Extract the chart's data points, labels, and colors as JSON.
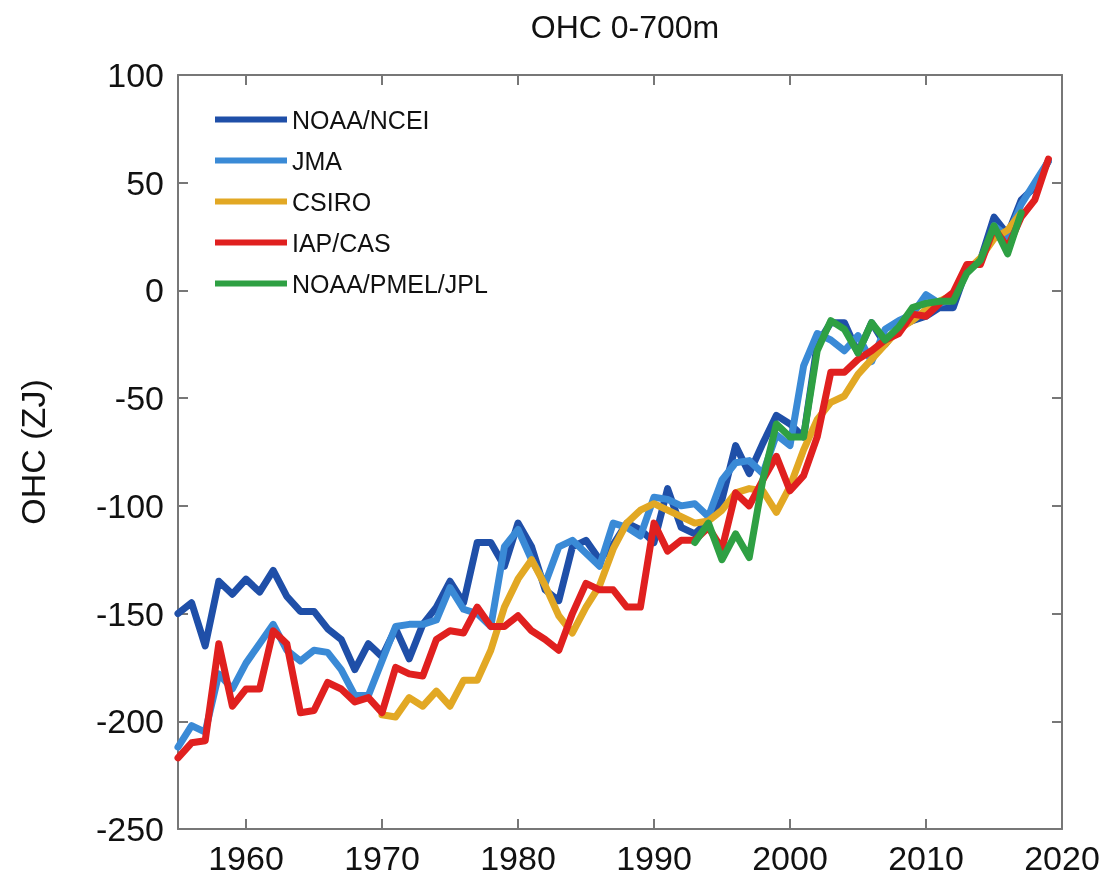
{
  "chart_data": {
    "type": "line",
    "title": "OHC 0-700m",
    "ylabel": "OHC (ZJ)",
    "xlim": [
      1955,
      2020
    ],
    "xticks": [
      1960,
      1970,
      1980,
      1990,
      2000,
      2010,
      2020
    ],
    "ylim": [
      -250,
      100
    ],
    "yticks": [
      -250,
      -200,
      -150,
      -100,
      -50,
      0,
      50,
      100
    ],
    "grid": false,
    "legend": "top left",
    "marker": "none",
    "line_style": "solid",
    "series": [
      {
        "name": "NOAA/NCEI",
        "color": "#1f4fa8",
        "x": [
          1955,
          1956,
          1957,
          1958,
          1959,
          1960,
          1961,
          1962,
          1963,
          1964,
          1965,
          1966,
          1967,
          1968,
          1969,
          1970,
          1971,
          1972,
          1973,
          1974,
          1975,
          1976,
          1977,
          1978,
          1979,
          1980,
          1981,
          1982,
          1983,
          1984,
          1985,
          1986,
          1987,
          1988,
          1989,
          1990,
          1991,
          1992,
          1993,
          1994,
          1995,
          1996,
          1997,
          1998,
          1999,
          2000,
          2001,
          2002,
          2003,
          2004,
          2005,
          2006,
          2007,
          2008,
          2009,
          2010,
          2011,
          2012,
          2013,
          2014,
          2015,
          2016,
          2017,
          2018,
          2019
        ],
        "values": [
          -150,
          -145,
          -165,
          -135,
          -141,
          -134,
          -140,
          -130,
          -142,
          -149,
          -149,
          -157,
          -162,
          -176,
          -164,
          -170,
          -157,
          -171,
          -155,
          -147,
          -135,
          -145,
          -117,
          -117,
          -128,
          -108,
          -119,
          -139,
          -144,
          -119,
          -116,
          -125,
          -118,
          -108,
          -111,
          -117,
          -92,
          -110,
          -113,
          -107,
          -97,
          -72,
          -85,
          -71,
          -58,
          -62,
          -68,
          -25,
          -15,
          -15,
          -29,
          -15,
          -25,
          -17,
          -14,
          -12,
          -8,
          -8,
          10,
          14,
          34,
          26,
          42,
          48,
          60
        ]
      },
      {
        "name": "JMA",
        "color": "#3a8ad6",
        "x": [
          1955,
          1956,
          1957,
          1958,
          1959,
          1960,
          1961,
          1962,
          1963,
          1964,
          1965,
          1966,
          1967,
          1968,
          1969,
          1970,
          1971,
          1972,
          1973,
          1974,
          1975,
          1976,
          1977,
          1978,
          1979,
          1980,
          1981,
          1982,
          1983,
          1984,
          1985,
          1986,
          1987,
          1988,
          1989,
          1990,
          1991,
          1992,
          1993,
          1994,
          1995,
          1996,
          1997,
          1998,
          1999,
          2000,
          2001,
          2002,
          2003,
          2004,
          2005,
          2006,
          2007,
          2008,
          2009,
          2010,
          2011,
          2012,
          2013,
          2014,
          2015,
          2016,
          2017,
          2018,
          2019
        ],
        "values": [
          -212,
          -202,
          -205,
          -178,
          -185,
          -173,
          -164,
          -155,
          -167,
          -172,
          -167,
          -168,
          -176,
          -188,
          -188,
          -172,
          -156,
          -155,
          -155,
          -153,
          -138,
          -148,
          -150,
          -156,
          -119,
          -111,
          -125,
          -136,
          -119,
          -116,
          -122,
          -128,
          -108,
          -110,
          -114,
          -96,
          -97,
          -100,
          -99,
          -105,
          -88,
          -80,
          -79,
          -85,
          -67,
          -72,
          -35,
          -20,
          -23,
          -28,
          -21,
          -33,
          -18,
          -14,
          -11,
          -2,
          -6,
          -4,
          10,
          null,
          30,
          25,
          40,
          50,
          60
        ]
      },
      {
        "name": "CSIRO",
        "color": "#e2a824",
        "x": [
          1970,
          1971,
          1972,
          1973,
          1974,
          1975,
          1976,
          1977,
          1978,
          1979,
          1980,
          1981,
          1982,
          1983,
          1984,
          1985,
          1986,
          1987,
          1988,
          1989,
          1990,
          1991,
          1992,
          1993,
          1994,
          1995,
          1996,
          1997,
          1998,
          1999,
          2000,
          2001,
          2002,
          2003,
          2004,
          2005,
          2006,
          2007,
          2008,
          2009,
          2010,
          2011,
          2012,
          2013,
          2014,
          2015,
          2016,
          2017
        ],
        "values": [
          -197,
          -198,
          -189,
          -193,
          -186,
          -193,
          -181,
          -181,
          -167,
          -147,
          -134,
          -125,
          -137,
          -151,
          -159,
          -147,
          -137,
          -120,
          -108,
          -102,
          -99,
          -102,
          -105,
          -108,
          -107,
          -102,
          -94,
          -92,
          -93,
          -103,
          -91,
          -74,
          -60,
          -52,
          -49,
          -39,
          -32,
          -25,
          -18,
          -14,
          -9,
          -5,
          -2,
          9,
          15,
          24,
          28,
          36
        ]
      },
      {
        "name": "IAP/CAS",
        "color": "#e0201f",
        "x": [
          1955,
          1956,
          1957,
          1958,
          1959,
          1960,
          1961,
          1962,
          1963,
          1964,
          1965,
          1966,
          1967,
          1968,
          1969,
          1970,
          1971,
          1972,
          1973,
          1974,
          1975,
          1976,
          1977,
          1978,
          1979,
          1980,
          1981,
          1982,
          1983,
          1984,
          1985,
          1986,
          1987,
          1988,
          1989,
          1990,
          1991,
          1992,
          1993,
          1994,
          1995,
          1996,
          1997,
          1998,
          1999,
          2000,
          2001,
          2002,
          2003,
          2004,
          2005,
          2006,
          2007,
          2008,
          2009,
          2010,
          2011,
          2012,
          2013,
          2014,
          2015,
          2016,
          2017,
          2018,
          2019
        ],
        "values": [
          -217,
          -210,
          -209,
          -164,
          -193,
          -185,
          -185,
          -158,
          -164,
          -196,
          -195,
          -182,
          -185,
          -191,
          -189,
          -196,
          -175,
          -178,
          -179,
          -162,
          -158,
          -159,
          -147,
          -156,
          -156,
          -151,
          -158,
          -162,
          -167,
          -150,
          -136,
          -139,
          -139,
          -147,
          -147,
          -108,
          -121,
          -116,
          -116,
          -110,
          -120,
          -94,
          -100,
          -88,
          -77,
          -93,
          -86,
          -68,
          -38,
          -38,
          -32,
          -28,
          -23,
          -20,
          -11,
          -12,
          -6,
          -1,
          12,
          12,
          29,
          20,
          34,
          42,
          61
        ]
      },
      {
        "name": "NOAA/PMEL/JPL",
        "color": "#2ea043",
        "x": [
          1993,
          1994,
          1995,
          1996,
          1997,
          1998,
          1999,
          2000,
          2001,
          2002,
          2003,
          2004,
          2005,
          2006,
          2007,
          2008,
          2009,
          2010,
          2011,
          2012,
          2013,
          2014,
          2015,
          2016,
          2017
        ],
        "values": [
          -117,
          -108,
          -125,
          -113,
          -124,
          -88,
          -62,
          -68,
          -68,
          -28,
          -14,
          -18,
          -29,
          -15,
          -23,
          -17,
          -8,
          -6,
          -5,
          -5,
          8,
          14,
          30,
          17,
          36
        ]
      }
    ]
  }
}
